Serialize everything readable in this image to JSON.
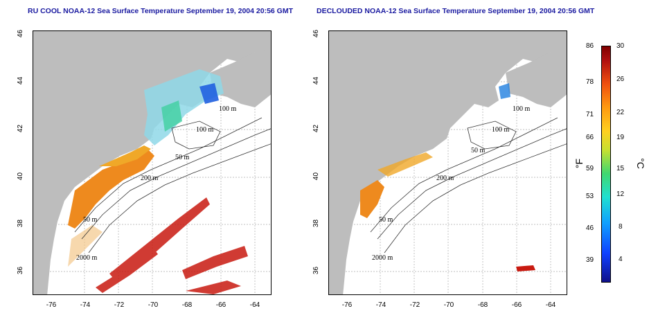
{
  "left_panel": {
    "title": "RU COOL NOAA-12 Sea Surface Temperature September 19, 2004 20:56 GMT"
  },
  "right_panel": {
    "title": "DECLOUDED NOAA-12 Sea Surface Temperature September 19, 2004 20:56 GMT"
  },
  "axes": {
    "x_ticks": [
      "-76",
      "-74",
      "-72",
      "-70",
      "-68",
      "-66",
      "-64"
    ],
    "y_ticks": [
      "36",
      "38",
      "40",
      "42",
      "44",
      "46"
    ]
  },
  "contours": [
    "100 m",
    "100 m",
    "50 m",
    "200 m",
    "50 m",
    "2000 m"
  ],
  "colorbar": {
    "fahrenheit_unit": "°F",
    "celsius_unit": "°C",
    "fahrenheit_ticks": [
      "86",
      "78",
      "71",
      "66",
      "59",
      "53",
      "46",
      "39"
    ],
    "celsius_ticks": [
      "30",
      "26",
      "22",
      "19",
      "15",
      "12",
      "8",
      "4"
    ]
  },
  "colors": {
    "land": "#bdbdbd",
    "title": "#1a1aa0",
    "warm": "#ee8a1e",
    "hot": "#c81a10",
    "cool": "#20b8e0"
  }
}
